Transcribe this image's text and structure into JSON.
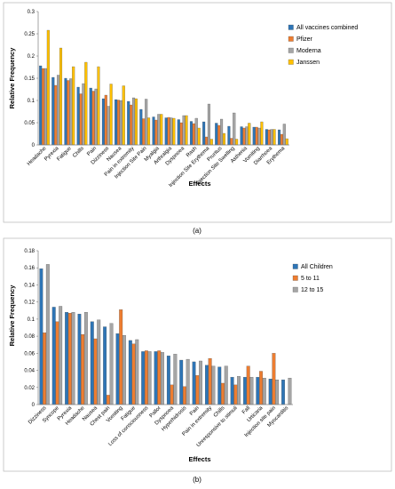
{
  "chart_data": [
    {
      "type": "bar",
      "panel_label": "(a)",
      "xlabel": "Effects",
      "ylabel": "Relative Frequency",
      "ylim": [
        0,
        0.3
      ],
      "yticks": [
        "0",
        "0.05",
        "0.1",
        "0.15",
        "0.2",
        "0.25",
        "0.3"
      ],
      "legend_position": "top-right",
      "grid": false,
      "categories": [
        "Headache",
        "Pyrexia",
        "Fatigue",
        "Chills",
        "Pain",
        "Dizziness",
        "Nausea",
        "Pain in extremity",
        "Injection Site Pain",
        "Myalgia",
        "Arthralgia",
        "Dyspnoea",
        "Rash",
        "Injection Site Erythema",
        "Pruritus",
        "Injection Site Swelling",
        "Asthenia",
        "Vomiting",
        "Diarrhoea",
        "Erythema"
      ],
      "series": [
        {
          "name": "All vaccines combined",
          "color": "#2e75b6",
          "values": [
            0.178,
            0.152,
            0.15,
            0.13,
            0.128,
            0.104,
            0.102,
            0.098,
            0.08,
            0.063,
            0.061,
            0.057,
            0.053,
            0.052,
            0.049,
            0.042,
            0.041,
            0.04,
            0.035,
            0.034
          ]
        },
        {
          "name": "Pfizer",
          "color": "#ed7d31",
          "values": [
            0.172,
            0.134,
            0.145,
            0.115,
            0.121,
            0.112,
            0.101,
            0.09,
            0.059,
            0.056,
            0.062,
            0.05,
            0.048,
            0.018,
            0.044,
            0.015,
            0.038,
            0.04,
            0.034,
            0.024
          ]
        },
        {
          "name": "Moderna",
          "color": "#a5a5a5",
          "values": [
            0.172,
            0.157,
            0.149,
            0.138,
            0.126,
            0.087,
            0.1,
            0.106,
            0.103,
            0.069,
            0.061,
            0.066,
            0.06,
            0.092,
            0.058,
            0.072,
            0.041,
            0.038,
            0.035,
            0.047
          ]
        },
        {
          "name": "Janssen",
          "color": "#ffc000",
          "values": [
            0.258,
            0.218,
            0.176,
            0.186,
            0.176,
            0.137,
            0.133,
            0.104,
            0.061,
            0.069,
            0.06,
            0.066,
            0.038,
            0.013,
            0.026,
            0.013,
            0.049,
            0.052,
            0.035,
            0.014
          ]
        }
      ]
    },
    {
      "type": "bar",
      "panel_label": "(b)",
      "xlabel": "Effects",
      "ylabel": "Relative Frequency",
      "ylim": [
        0,
        0.18
      ],
      "yticks": [
        "0",
        "0.02",
        "0.04",
        "0.06",
        "0.08",
        "0.1",
        "0.12",
        "0.14",
        "0.16",
        "0.18"
      ],
      "legend_position": "top-right",
      "grid": false,
      "categories": [
        "Dizziness",
        "Syncope",
        "Pyrexia",
        "Headache",
        "Nausea",
        "Chest pain",
        "Vomiting",
        "Fatigue",
        "Loss of consciousness",
        "Pallor",
        "Dyspnoea",
        "Hyperhidrosis",
        "Pain",
        "Pain in extremity",
        "Chills",
        "Unresponsive to stimuli",
        "Fall",
        "Urticaria",
        "Injection site pain",
        "Myocarditis"
      ],
      "series": [
        {
          "name": "All Children",
          "color": "#2e75b6",
          "values": [
            0.159,
            0.114,
            0.108,
            0.106,
            0.097,
            0.091,
            0.083,
            0.075,
            0.062,
            0.062,
            0.057,
            0.052,
            0.05,
            0.046,
            0.044,
            0.032,
            0.032,
            0.032,
            0.03,
            0.029
          ]
        },
        {
          "name": "5 to 11",
          "color": "#ed7d31",
          "values": [
            0.084,
            0.097,
            0.107,
            0.082,
            0.077,
            0.011,
            0.111,
            0.071,
            0.063,
            0.063,
            0.023,
            0.021,
            0.034,
            0.054,
            0.025,
            0.023,
            0.045,
            0.039,
            0.06,
            0.0
          ]
        },
        {
          "name": "12 to 15",
          "color": "#a5a5a5",
          "values": [
            0.164,
            0.115,
            0.108,
            0.108,
            0.099,
            0.095,
            0.081,
            0.076,
            0.062,
            0.061,
            0.059,
            0.053,
            0.051,
            0.045,
            0.045,
            0.033,
            0.032,
            0.031,
            0.029,
            0.031
          ]
        }
      ]
    }
  ]
}
